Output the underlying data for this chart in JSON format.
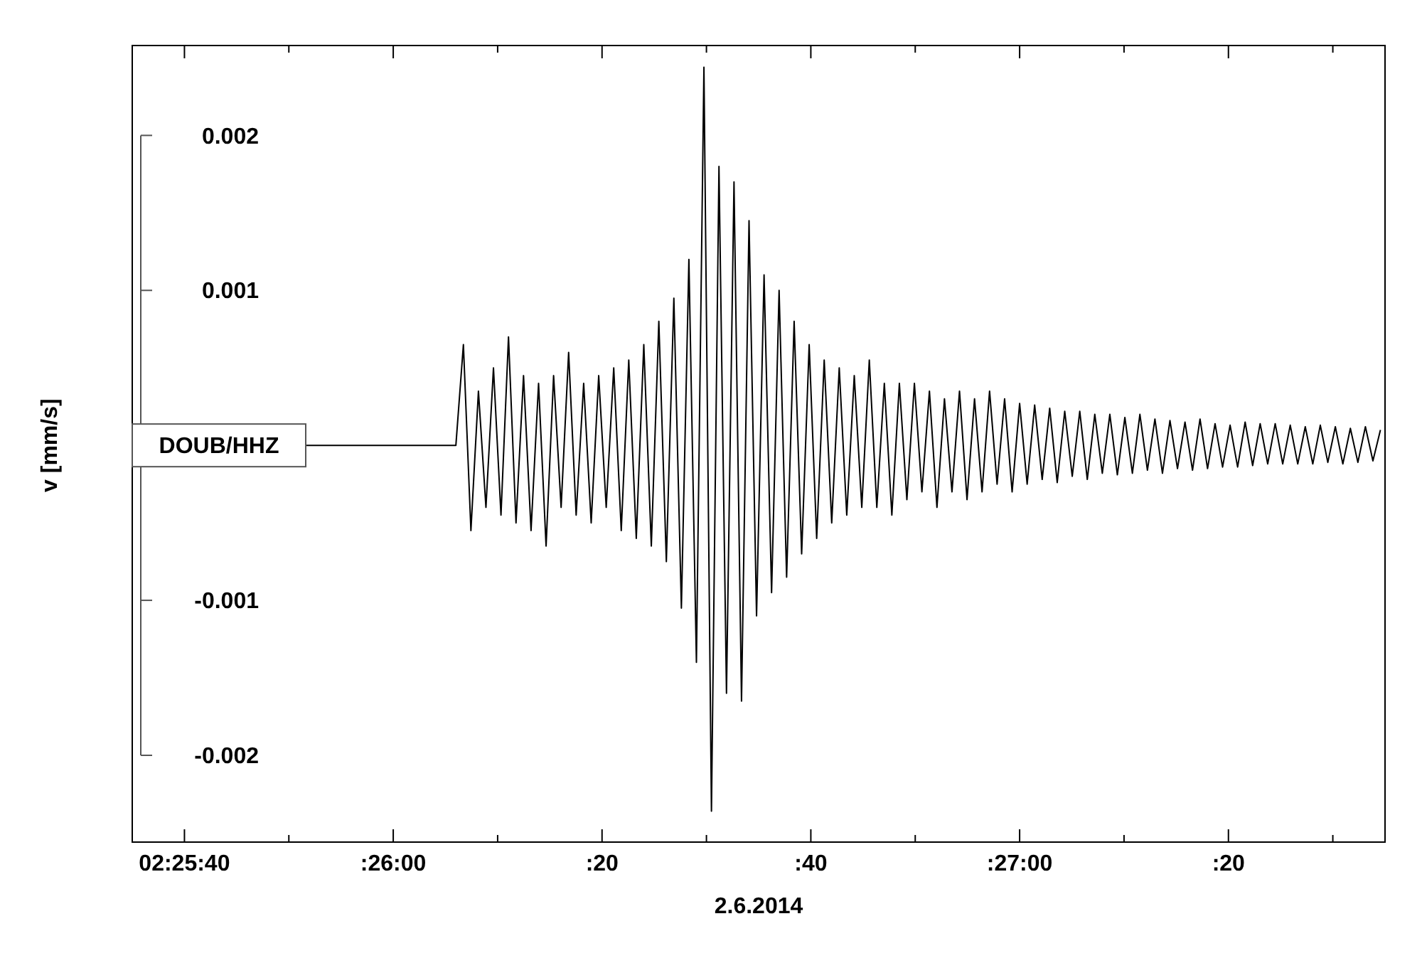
{
  "chart_data": {
    "type": "line",
    "xlabel": "2.6.2014",
    "ylabel": "v [mm/s]",
    "color": "#000000",
    "xlim": [
      "2014-06-02T02:25:35",
      "2014-06-02T02:27:35"
    ],
    "ylim": [
      -0.00256,
      0.00258
    ],
    "xticks": [
      {
        "value": "2014-06-02T02:25:40",
        "label": "02:25:40"
      },
      {
        "value": "2014-06-02T02:25:50",
        "label": null
      },
      {
        "value": "2014-06-02T02:26:00",
        "label": ":26:00"
      },
      {
        "value": "2014-06-02T02:26:10",
        "label": null
      },
      {
        "value": "2014-06-02T02:26:20",
        "label": ":20"
      },
      {
        "value": "2014-06-02T02:26:30",
        "label": null
      },
      {
        "value": "2014-06-02T02:26:40",
        "label": ":40"
      },
      {
        "value": "2014-06-02T02:26:50",
        "label": null
      },
      {
        "value": "2014-06-02T02:27:00",
        "label": ":27:00"
      },
      {
        "value": "2014-06-02T02:27:10",
        "label": null
      },
      {
        "value": "2014-06-02T02:27:20",
        "label": ":20"
      },
      {
        "value": "2014-06-02T02:27:30",
        "label": null
      }
    ],
    "yticks": [
      -0.002,
      -0.001,
      0.001,
      0.002
    ],
    "annotations": [
      "DOUB/HHZ"
    ],
    "x": [
      "2014-06-02T02:25:51.6",
      "2014-06-02T02:26:06",
      "2014-06-02T02:26:06.72",
      "2014-06-02T02:26:07.44",
      "2014-06-02T02:26:08.16",
      "2014-06-02T02:26:08.88",
      "2014-06-02T02:26:09.6",
      "2014-06-02T02:26:10.32",
      "2014-06-02T02:26:11.04",
      "2014-06-02T02:26:11.76",
      "2014-06-02T02:26:12.48",
      "2014-06-02T02:26:13.2",
      "2014-06-02T02:26:13.92",
      "2014-06-02T02:26:14.64",
      "2014-06-02T02:26:15.36",
      "2014-06-02T02:26:16.08",
      "2014-06-02T02:26:16.8",
      "2014-06-02T02:26:17.52",
      "2014-06-02T02:26:18.24",
      "2014-06-02T02:26:18.96",
      "2014-06-02T02:26:19.68",
      "2014-06-02T02:26:20.4",
      "2014-06-02T02:26:21.12",
      "2014-06-02T02:26:21.84",
      "2014-06-02T02:26:22.56",
      "2014-06-02T02:26:23.28",
      "2014-06-02T02:26:24",
      "2014-06-02T02:26:24.72",
      "2014-06-02T02:26:25.44",
      "2014-06-02T02:26:26.16",
      "2014-06-02T02:26:26.88",
      "2014-06-02T02:26:27.6",
      "2014-06-02T02:26:28.32",
      "2014-06-02T02:26:29.04",
      "2014-06-02T02:26:29.76",
      "2014-06-02T02:26:30.48",
      "2014-06-02T02:26:31.2",
      "2014-06-02T02:26:31.92",
      "2014-06-02T02:26:32.64",
      "2014-06-02T02:26:33.36",
      "2014-06-02T02:26:34.08",
      "2014-06-02T02:26:34.8",
      "2014-06-02T02:26:35.52",
      "2014-06-02T02:26:36.24",
      "2014-06-02T02:26:36.96",
      "2014-06-02T02:26:37.68",
      "2014-06-02T02:26:38.4",
      "2014-06-02T02:26:39.12",
      "2014-06-02T02:26:39.84",
      "2014-06-02T02:26:40.56",
      "2014-06-02T02:26:41.28",
      "2014-06-02T02:26:42",
      "2014-06-02T02:26:42.72",
      "2014-06-02T02:26:43.44",
      "2014-06-02T02:26:44.16",
      "2014-06-02T02:26:44.88",
      "2014-06-02T02:26:45.6",
      "2014-06-02T02:26:46.32",
      "2014-06-02T02:26:47.04",
      "2014-06-02T02:26:47.76",
      "2014-06-02T02:26:48.48",
      "2014-06-02T02:26:49.2",
      "2014-06-02T02:26:49.92",
      "2014-06-02T02:26:50.64",
      "2014-06-02T02:26:51.36",
      "2014-06-02T02:26:52.08",
      "2014-06-02T02:26:52.8",
      "2014-06-02T02:26:53.52",
      "2014-06-02T02:26:54.24",
      "2014-06-02T02:26:54.96",
      "2014-06-02T02:26:55.68",
      "2014-06-02T02:26:56.4",
      "2014-06-02T02:26:57.12",
      "2014-06-02T02:26:57.84",
      "2014-06-02T02:26:58.56",
      "2014-06-02T02:26:59.28",
      "2014-06-02T02:27:00",
      "2014-06-02T02:27:00.72",
      "2014-06-02T02:27:01.44",
      "2014-06-02T02:27:02.16",
      "2014-06-02T02:27:02.88",
      "2014-06-02T02:27:03.6",
      "2014-06-02T02:27:04.32",
      "2014-06-02T02:27:05.04",
      "2014-06-02T02:27:05.76",
      "2014-06-02T02:27:06.48",
      "2014-06-02T02:27:07.2",
      "2014-06-02T02:27:07.92",
      "2014-06-02T02:27:08.64",
      "2014-06-02T02:27:09.36",
      "2014-06-02T02:27:10.08",
      "2014-06-02T02:27:10.8",
      "2014-06-02T02:27:11.52",
      "2014-06-02T02:27:12.24",
      "2014-06-02T02:27:12.96",
      "2014-06-02T02:27:13.68",
      "2014-06-02T02:27:14.4",
      "2014-06-02T02:27:15.12",
      "2014-06-02T02:27:15.84",
      "2014-06-02T02:27:16.56",
      "2014-06-02T02:27:17.28",
      "2014-06-02T02:27:18",
      "2014-06-02T02:27:18.72",
      "2014-06-02T02:27:19.44",
      "2014-06-02T02:27:20.16",
      "2014-06-02T02:27:20.88",
      "2014-06-02T02:27:21.6",
      "2014-06-02T02:27:22.32",
      "2014-06-02T02:27:23.04",
      "2014-06-02T02:27:23.76",
      "2014-06-02T02:27:24.48",
      "2014-06-02T02:27:25.2",
      "2014-06-02T02:27:25.92",
      "2014-06-02T02:27:26.64",
      "2014-06-02T02:27:27.36",
      "2014-06-02T02:27:28.08",
      "2014-06-02T02:27:28.8",
      "2014-06-02T02:27:29.52",
      "2014-06-02T02:27:30.24",
      "2014-06-02T02:27:30.96",
      "2014-06-02T02:27:31.68",
      "2014-06-02T02:27:32.4",
      "2014-06-02T02:27:33.12",
      "2014-06-02T02:27:33.84",
      "2014-06-02T02:27:34.56"
    ],
    "values": [
      0,
      0,
      0.00065,
      -0.00055,
      0.00035,
      -0.0004,
      0.0005,
      -0.00045,
      0.0007,
      -0.0005,
      0.00045,
      -0.00055,
      0.0004,
      -0.00065,
      0.00045,
      -0.0004,
      0.0006,
      -0.00045,
      0.0004,
      -0.0005,
      0.00045,
      -0.0004,
      0.0005,
      -0.00055,
      0.00055,
      -0.0006,
      0.00065,
      -0.00065,
      0.0008,
      -0.00075,
      0.00095,
      -0.00105,
      0.0012,
      -0.0014,
      0.00244,
      -0.00236,
      0.0018,
      -0.0016,
      0.0017,
      -0.00165,
      0.00145,
      -0.0011,
      0.0011,
      -0.00095,
      0.001,
      -0.00085,
      0.0008,
      -0.0007,
      0.00065,
      -0.0006,
      0.00055,
      -0.0005,
      0.0005,
      -0.00045,
      0.00045,
      -0.0004,
      0.00055,
      -0.0004,
      0.0004,
      -0.00045,
      0.0004,
      -0.00035,
      0.0004,
      -0.0003,
      0.00035,
      -0.0004,
      0.0003,
      -0.0003,
      0.00035,
      -0.00035,
      0.0003,
      -0.0003,
      0.00035,
      -0.00025,
      0.0003,
      -0.0003,
      0.00027,
      -0.00025,
      0.00026,
      -0.00022,
      0.00024,
      -0.00024,
      0.00022,
      -0.0002,
      0.00022,
      -0.00022,
      0.0002,
      -0.00018,
      0.0002,
      -0.00019,
      0.00018,
      -0.00018,
      0.0002,
      -0.00016,
      0.00017,
      -0.00018,
      0.00016,
      -0.00015,
      0.00015,
      -0.00016,
      0.00017,
      -0.00015,
      0.00014,
      -0.00014,
      0.00013,
      -0.00014,
      0.00015,
      -0.00013,
      0.00014,
      -0.00012,
      0.00014,
      -0.00012,
      0.00013,
      -0.00012,
      0.00012,
      -0.00012,
      0.00013,
      -0.00011,
      0.00012,
      -0.00012,
      0.00011,
      -0.00011,
      0.00012,
      -0.0001,
      0.0001
    ]
  }
}
